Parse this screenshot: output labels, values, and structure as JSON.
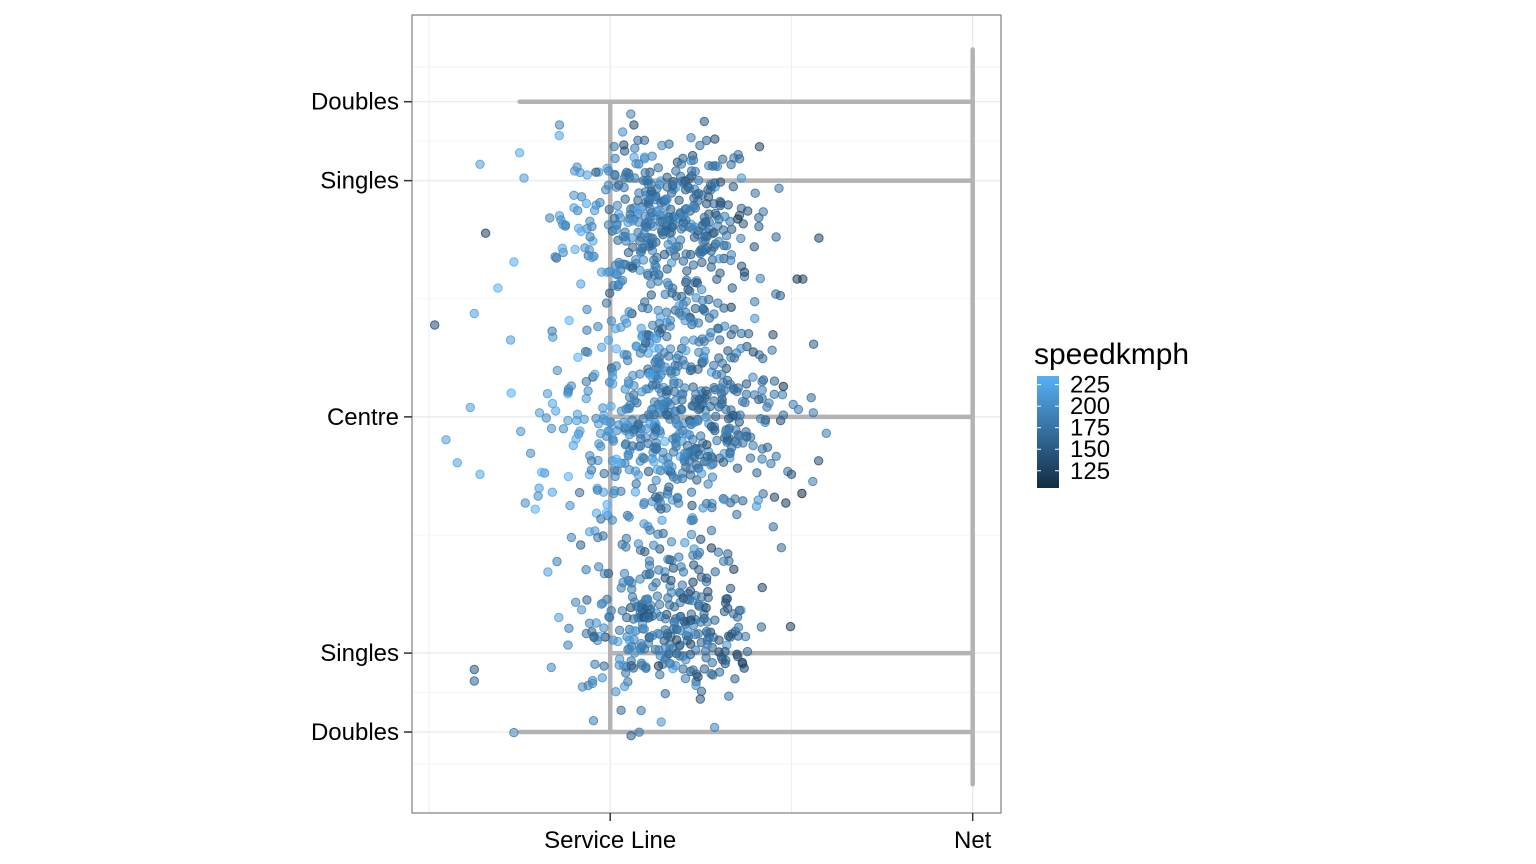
{
  "chart_data": {
    "type": "scatter",
    "title": "",
    "xlabel": "",
    "ylabel": "",
    "x_ticks": [
      {
        "label": "Service Line",
        "value": 0
      },
      {
        "label": "Net",
        "value": 6.4
      }
    ],
    "y_ticks": [
      {
        "label": "Doubles",
        "value": 5.49
      },
      {
        "label": "Singles",
        "value": 4.115
      },
      {
        "label": "Centre",
        "value": 0
      },
      {
        "label": "Singles",
        "value": -4.115
      },
      {
        "label": "Doubles",
        "value": -5.49
      }
    ],
    "xlim": [
      -3.5,
      6.9
    ],
    "ylim": [
      -6.9,
      7.0
    ],
    "grid": true,
    "legend": {
      "title": "speedkmph",
      "position": "right",
      "labels": [
        "225",
        "200",
        "175",
        "150",
        "125"
      ],
      "low_color": "#132b43",
      "high_color": "#56b1f7",
      "range": [
        105,
        235
      ]
    },
    "court_line_color": "#b3b3b3",
    "clusters": [
      {
        "cx": 0.9,
        "cy": 3.4,
        "sx": 0.85,
        "sy": 0.75,
        "n": 420,
        "speed_mean": 175
      },
      {
        "cx": 1.1,
        "cy": 0.0,
        "sx": 0.95,
        "sy": 1.05,
        "n": 620,
        "speed_mean": 182
      },
      {
        "cx": 1.0,
        "cy": -3.6,
        "sx": 0.8,
        "sy": 0.7,
        "n": 310,
        "speed_mean": 172
      }
    ],
    "points": [
      {
        "x": -2.2,
        "y": 3.2,
        "speed": 125
      },
      {
        "x": -3.1,
        "y": 1.6,
        "speed": 140
      },
      {
        "x": -2.9,
        "y": -0.4,
        "speed": 215
      },
      {
        "x": -2.7,
        "y": -0.8,
        "speed": 220
      },
      {
        "x": -2.3,
        "y": -1.0,
        "speed": 225
      },
      {
        "x": -2.4,
        "y": 1.8,
        "speed": 220
      },
      {
        "x": -1.7,
        "y": 2.7,
        "speed": 230
      },
      {
        "x": -1.6,
        "y": 4.6,
        "speed": 225
      },
      {
        "x": -0.9,
        "y": 4.9,
        "speed": 220
      },
      {
        "x": -2.3,
        "y": 4.4,
        "speed": 215
      },
      {
        "x": -1.5,
        "y": -1.5,
        "speed": 200
      },
      {
        "x": -1.7,
        "y": -5.5,
        "speed": 185
      },
      {
        "x": -2.4,
        "y": -4.4,
        "speed": 150
      },
      {
        "x": -2.4,
        "y": -4.6,
        "speed": 160
      },
      {
        "x": -1.1,
        "y": -2.7,
        "speed": 215
      },
      {
        "x": 3.4,
        "y": 2.4,
        "speed": 130
      },
      {
        "x": 3.3,
        "y": 2.4,
        "speed": 120
      },
      {
        "x": 3.2,
        "y": -1.0,
        "speed": 140
      },
      {
        "x": 3.1,
        "y": -1.5,
        "speed": 120
      },
      {
        "x": 2.9,
        "y": -1.4,
        "speed": 130
      }
    ]
  }
}
